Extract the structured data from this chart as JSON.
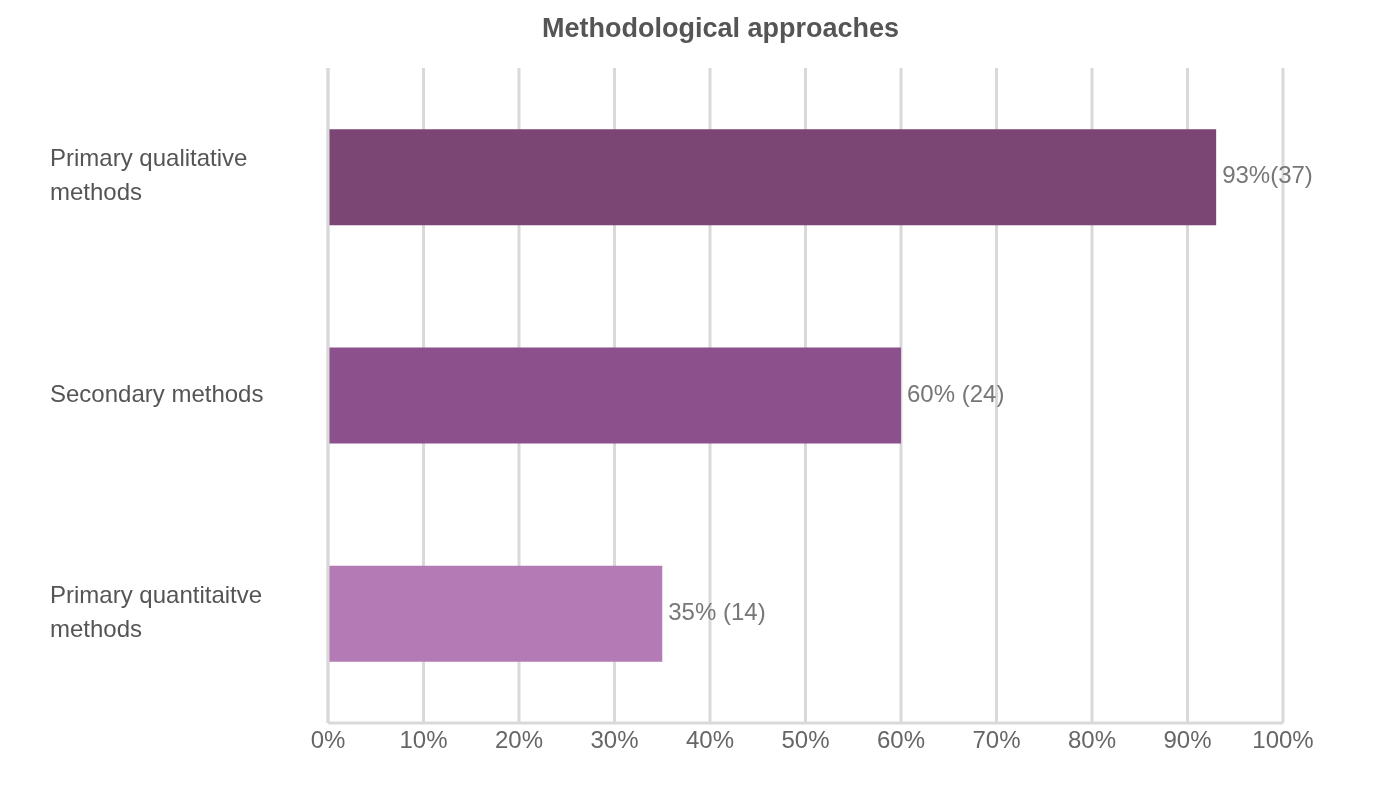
{
  "chart_data": {
    "type": "bar",
    "orientation": "horizontal",
    "title": "Methodological approaches",
    "categories": [
      "Primary qualitative methods",
      "Secondary methods",
      "Primary quantitaitve methods"
    ],
    "values": [
      93,
      60,
      35
    ],
    "colors": [
      "#7b4574",
      "#8c518c",
      "#b37ab5"
    ],
    "value_labels": [
      "93%(37)",
      "60% (24)",
      "35% (14)"
    ],
    "xlim": [
      0,
      100
    ],
    "xticks": [
      {
        "value": 0,
        "label": "0%"
      },
      {
        "value": 10,
        "label": "10%"
      },
      {
        "value": 20,
        "label": "20%"
      },
      {
        "value": 30,
        "label": "30%"
      },
      {
        "value": 40,
        "label": "40%"
      },
      {
        "value": 50,
        "label": "50%"
      },
      {
        "value": 60,
        "label": "60%"
      },
      {
        "value": 70,
        "label": "70%"
      },
      {
        "value": 80,
        "label": "80%"
      },
      {
        "value": 90,
        "label": "90%"
      },
      {
        "value": 100,
        "label": "100%"
      }
    ],
    "grid": "x",
    "legend": false
  }
}
